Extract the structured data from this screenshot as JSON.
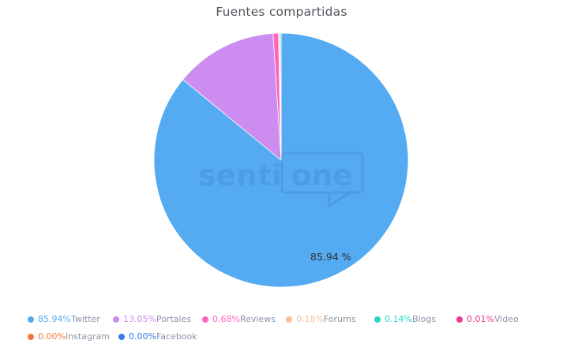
{
  "title": "Fuentes compartidas",
  "watermark": {
    "left": "senti",
    "right": "one"
  },
  "data_label": "85.94 %",
  "chart_data": {
    "type": "pie",
    "title": "Fuentes compartidas",
    "unit": "%",
    "start_angle_deg": 0,
    "direction": "clockwise",
    "legend_position": "bottom",
    "data_label_on_largest_slice": "85.94 %",
    "series": [
      {
        "name": "Twitter",
        "value": 85.94,
        "color": "#55abf2"
      },
      {
        "name": "Portales",
        "value": 13.05,
        "color": "#cd8cf0"
      },
      {
        "name": "Reviews",
        "value": 0.68,
        "color": "#ff63c1"
      },
      {
        "name": "Forums",
        "value": 0.18,
        "color": "#f9c09e"
      },
      {
        "name": "Blogs",
        "value": 0.14,
        "color": "#28d8c5"
      },
      {
        "name": "Video",
        "value": 0.01,
        "color": "#e93b8e"
      },
      {
        "name": "Instagram",
        "value": 0.0,
        "color": "#f5783b"
      },
      {
        "name": "Facebook",
        "value": 0.0,
        "color": "#3b79e6"
      }
    ]
  },
  "legend": {
    "items": [
      {
        "pct": "85.94%",
        "label": "Twitter",
        "color": "#55abf2"
      },
      {
        "pct": "13.05%",
        "label": "Portales",
        "color": "#cd8cf0"
      },
      {
        "pct": "0.68%",
        "label": "Reviews",
        "color": "#ff63c1"
      },
      {
        "pct": "0.18%",
        "label": "Forums",
        "color": "#f9c09e"
      },
      {
        "pct": "0.14%",
        "label": "Blogs",
        "color": "#28d8c5"
      },
      {
        "pct": "0.01%",
        "label": "Video",
        "color": "#e93b8e"
      },
      {
        "pct": "0.00%",
        "label": "Instagram",
        "color": "#f5783b"
      },
      {
        "pct": "0.00%",
        "label": "Facebook",
        "color": "#3b79e6"
      }
    ]
  }
}
